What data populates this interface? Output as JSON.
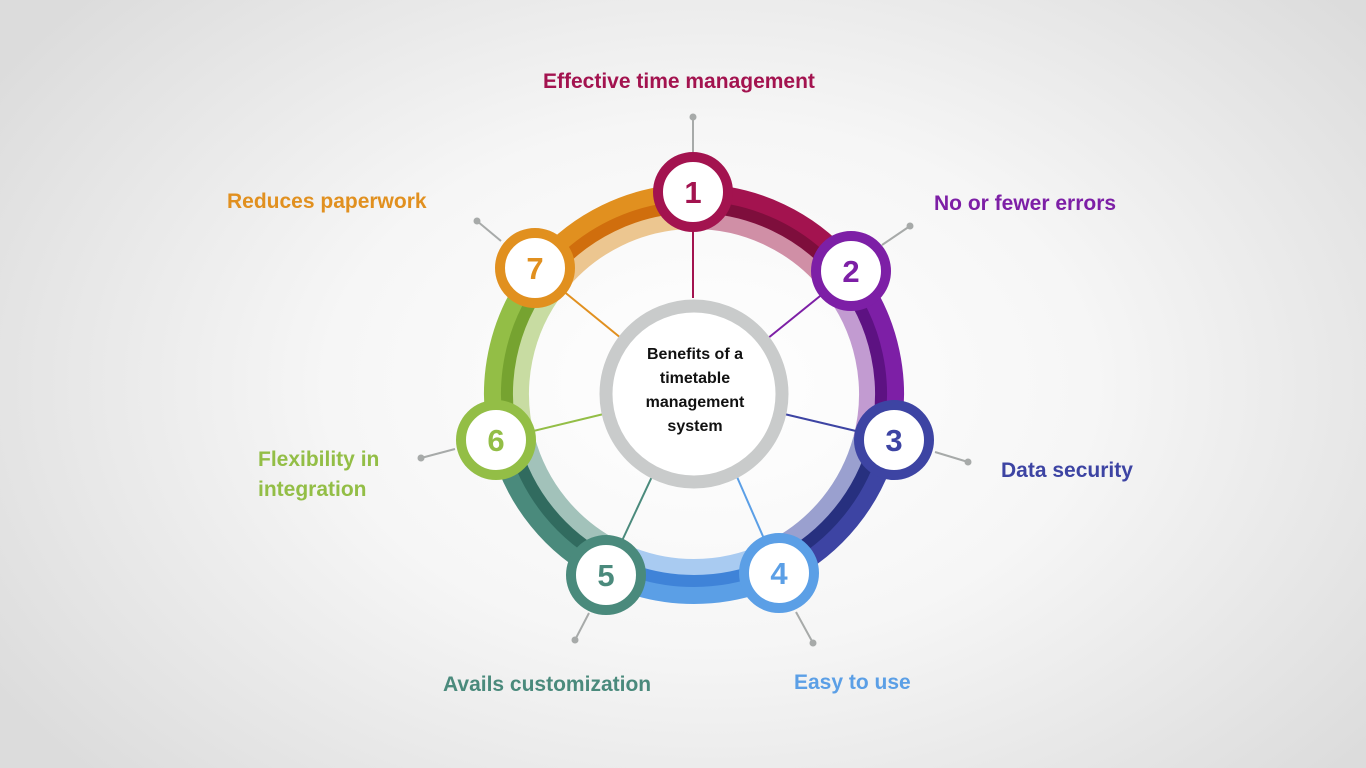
{
  "center": {
    "text": "Benefits of a timetable management system",
    "ring_color": "#c9cbcb"
  },
  "items": [
    {
      "number": "1",
      "label": "Effective time management",
      "color": "#a3134f",
      "dark": "#7e0e3c",
      "light": "#d08fa6"
    },
    {
      "number": "2",
      "label": "No or fewer errors",
      "color": "#7d1fa6",
      "dark": "#5d1282",
      "light": "#c29bd1"
    },
    {
      "number": "3",
      "label": "Data security",
      "color": "#3d44a3",
      "dark": "#27307f",
      "light": "#9aa0cf"
    },
    {
      "number": "4",
      "label": "Easy to use",
      "color": "#5b9fe6",
      "dark": "#3f83d8",
      "light": "#a9cbf1"
    },
    {
      "number": "5",
      "label": "Avails customization",
      "color": "#4a8a7c",
      "dark": "#316b5f",
      "light": "#a2c2ba"
    },
    {
      "number": "6",
      "label": "Flexibility in integration",
      "color": "#93be46",
      "dark": "#76a330",
      "light": "#c8dca2"
    },
    {
      "number": "7",
      "label": "Reduces paperwork",
      "color": "#e1901f",
      "dark": "#d06e0d",
      "light": "#ecc690"
    }
  ]
}
